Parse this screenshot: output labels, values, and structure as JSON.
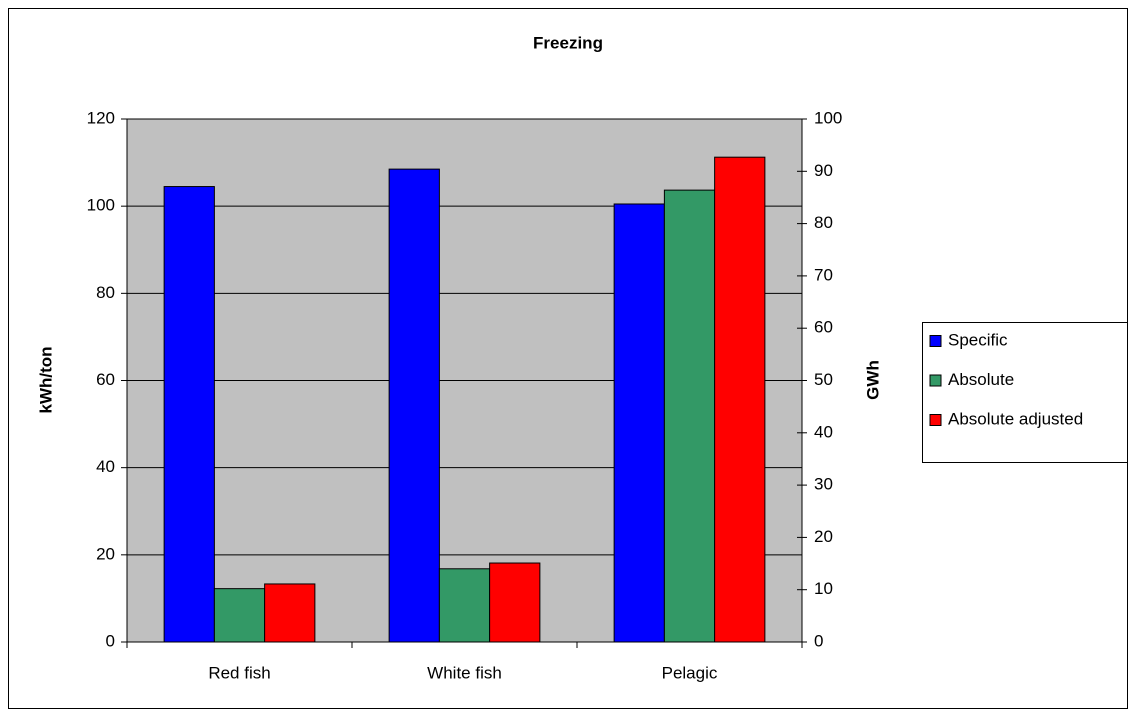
{
  "chart_data": {
    "type": "bar",
    "title": "Freezing",
    "categories": [
      "Red fish",
      "White fish",
      "Pelagic"
    ],
    "y_label": "kWh/ton",
    "y2_label": "GWh",
    "series": [
      {
        "name": "Specific",
        "color": "#0000ff",
        "values": [
          104.5,
          108.5,
          100.5
        ]
      },
      {
        "name": "Absolute",
        "color": "#339966",
        "axis": "y2",
        "values": [
          10.2,
          14.0,
          86.4
        ]
      },
      {
        "name": "Absolute adjusted",
        "color": "#ff0000",
        "axis": "y2",
        "values": [
          11.1,
          15.1,
          92.7
        ]
      }
    ],
    "ylim": [
      0,
      120
    ],
    "yticks": [
      0,
      20,
      40,
      60,
      80,
      100,
      120
    ],
    "y2lim": [
      0,
      100
    ],
    "y2ticks": [
      0,
      10,
      20,
      30,
      40,
      50,
      60,
      70,
      80,
      90,
      100
    ],
    "grid": true,
    "legend": "right",
    "plot_background": "#c0c0c0"
  }
}
